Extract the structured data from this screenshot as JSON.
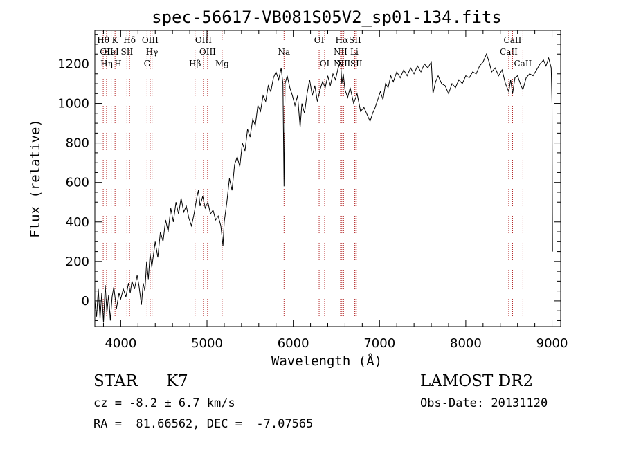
{
  "chart_data": {
    "type": "line",
    "title": "spec-56617-VB081S05V2_sp01-134.fits",
    "xlabel": "Wavelength (Å)",
    "ylabel": "Flux (relative)",
    "xlim": [
      3700,
      9100
    ],
    "ylim": [
      -130,
      1370
    ],
    "x_ticks": [
      4000,
      5000,
      6000,
      7000,
      8000,
      9000
    ],
    "y_ticks": [
      0,
      200,
      400,
      600,
      800,
      1000,
      1200
    ],
    "grid": false,
    "series": [
      {
        "color": "#000000",
        "points": [
          [
            3700,
            0
          ],
          [
            3720,
            -80
          ],
          [
            3740,
            60
          ],
          [
            3760,
            -90
          ],
          [
            3780,
            40
          ],
          [
            3800,
            -110
          ],
          [
            3820,
            80
          ],
          [
            3840,
            -60
          ],
          [
            3860,
            30
          ],
          [
            3880,
            -100
          ],
          [
            3900,
            20
          ],
          [
            3920,
            70
          ],
          [
            3950,
            -40
          ],
          [
            3980,
            40
          ],
          [
            4000,
            10
          ],
          [
            4030,
            60
          ],
          [
            4060,
            20
          ],
          [
            4090,
            90
          ],
          [
            4110,
            40
          ],
          [
            4130,
            100
          ],
          [
            4160,
            60
          ],
          [
            4190,
            130
          ],
          [
            4210,
            80
          ],
          [
            4240,
            -20
          ],
          [
            4260,
            90
          ],
          [
            4280,
            50
          ],
          [
            4300,
            200
          ],
          [
            4320,
            110
          ],
          [
            4340,
            240
          ],
          [
            4360,
            170
          ],
          [
            4400,
            300
          ],
          [
            4430,
            220
          ],
          [
            4460,
            350
          ],
          [
            4490,
            300
          ],
          [
            4520,
            410
          ],
          [
            4550,
            350
          ],
          [
            4580,
            470
          ],
          [
            4610,
            400
          ],
          [
            4640,
            500
          ],
          [
            4670,
            440
          ],
          [
            4700,
            520
          ],
          [
            4730,
            450
          ],
          [
            4760,
            480
          ],
          [
            4790,
            420
          ],
          [
            4820,
            380
          ],
          [
            4850,
            440
          ],
          [
            4880,
            520
          ],
          [
            4900,
            560
          ],
          [
            4920,
            480
          ],
          [
            4950,
            530
          ],
          [
            4980,
            470
          ],
          [
            5010,
            500
          ],
          [
            5040,
            440
          ],
          [
            5070,
            460
          ],
          [
            5100,
            410
          ],
          [
            5130,
            430
          ],
          [
            5160,
            380
          ],
          [
            5185,
            280
          ],
          [
            5200,
            400
          ],
          [
            5230,
            500
          ],
          [
            5260,
            620
          ],
          [
            5290,
            560
          ],
          [
            5320,
            690
          ],
          [
            5350,
            730
          ],
          [
            5380,
            680
          ],
          [
            5410,
            800
          ],
          [
            5440,
            760
          ],
          [
            5470,
            870
          ],
          [
            5500,
            830
          ],
          [
            5530,
            920
          ],
          [
            5560,
            890
          ],
          [
            5590,
            990
          ],
          [
            5620,
            960
          ],
          [
            5650,
            1040
          ],
          [
            5680,
            1010
          ],
          [
            5710,
            1090
          ],
          [
            5740,
            1060
          ],
          [
            5770,
            1130
          ],
          [
            5800,
            1160
          ],
          [
            5830,
            1120
          ],
          [
            5860,
            1180
          ],
          [
            5880,
            1100
          ],
          [
            5893,
            580
          ],
          [
            5905,
            1100
          ],
          [
            5930,
            1140
          ],
          [
            5960,
            1080
          ],
          [
            5990,
            1040
          ],
          [
            6020,
            990
          ],
          [
            6050,
            1040
          ],
          [
            6080,
            880
          ],
          [
            6100,
            1000
          ],
          [
            6130,
            950
          ],
          [
            6160,
            1050
          ],
          [
            6190,
            1120
          ],
          [
            6220,
            1040
          ],
          [
            6250,
            1090
          ],
          [
            6280,
            1010
          ],
          [
            6310,
            1070
          ],
          [
            6340,
            1110
          ],
          [
            6370,
            1080
          ],
          [
            6400,
            1140
          ],
          [
            6430,
            1090
          ],
          [
            6460,
            1150
          ],
          [
            6490,
            1120
          ],
          [
            6520,
            1180
          ],
          [
            6550,
            1210
          ],
          [
            6563,
            1100
          ],
          [
            6580,
            1150
          ],
          [
            6600,
            1070
          ],
          [
            6630,
            1030
          ],
          [
            6660,
            1080
          ],
          [
            6700,
            1000
          ],
          [
            6740,
            1050
          ],
          [
            6780,
            960
          ],
          [
            6820,
            980
          ],
          [
            6860,
            940
          ],
          [
            6890,
            910
          ],
          [
            6920,
            950
          ],
          [
            6950,
            980
          ],
          [
            6980,
            1020
          ],
          [
            7010,
            1060
          ],
          [
            7040,
            1020
          ],
          [
            7070,
            1100
          ],
          [
            7100,
            1080
          ],
          [
            7130,
            1140
          ],
          [
            7160,
            1110
          ],
          [
            7200,
            1160
          ],
          [
            7240,
            1130
          ],
          [
            7280,
            1170
          ],
          [
            7320,
            1140
          ],
          [
            7360,
            1180
          ],
          [
            7400,
            1150
          ],
          [
            7440,
            1190
          ],
          [
            7480,
            1160
          ],
          [
            7520,
            1200
          ],
          [
            7560,
            1180
          ],
          [
            7600,
            1210
          ],
          [
            7620,
            1050
          ],
          [
            7650,
            1110
          ],
          [
            7680,
            1140
          ],
          [
            7720,
            1100
          ],
          [
            7760,
            1090
          ],
          [
            7800,
            1050
          ],
          [
            7840,
            1100
          ],
          [
            7880,
            1080
          ],
          [
            7920,
            1120
          ],
          [
            7960,
            1100
          ],
          [
            8000,
            1140
          ],
          [
            8040,
            1130
          ],
          [
            8080,
            1160
          ],
          [
            8120,
            1150
          ],
          [
            8160,
            1190
          ],
          [
            8200,
            1210
          ],
          [
            8240,
            1250
          ],
          [
            8270,
            1210
          ],
          [
            8300,
            1160
          ],
          [
            8340,
            1180
          ],
          [
            8380,
            1140
          ],
          [
            8420,
            1170
          ],
          [
            8460,
            1100
          ],
          [
            8498,
            1060
          ],
          [
            8520,
            1120
          ],
          [
            8542,
            1050
          ],
          [
            8570,
            1130
          ],
          [
            8600,
            1140
          ],
          [
            8640,
            1090
          ],
          [
            8662,
            1070
          ],
          [
            8700,
            1130
          ],
          [
            8740,
            1150
          ],
          [
            8780,
            1140
          ],
          [
            8820,
            1170
          ],
          [
            8860,
            1200
          ],
          [
            8900,
            1220
          ],
          [
            8930,
            1190
          ],
          [
            8960,
            1230
          ],
          [
            8990,
            1180
          ],
          [
            9000,
            1000
          ],
          [
            9005,
            250
          ]
        ]
      }
    ],
    "lines": [
      {
        "labels": [
          "Hθ"
        ],
        "row": 1,
        "wavelength": 3797
      },
      {
        "labels": [
          "OII",
          "Hη"
        ],
        "row": 2,
        "wavelength": 3836
      },
      {
        "labels": [
          "HeI"
        ],
        "row": 2,
        "wavelength": 3889
      },
      {
        "labels": [
          "K"
        ],
        "row": 1,
        "wavelength": 3934
      },
      {
        "labels": [
          "H"
        ],
        "row": 3,
        "wavelength": 3969
      },
      {
        "labels": [
          "SII"
        ],
        "row": 2,
        "wavelength": 4072
      },
      {
        "labels": [
          "Hδ"
        ],
        "row": 1,
        "wavelength": 4102
      },
      {
        "labels": [
          "G"
        ],
        "row": 3,
        "wavelength": 4305
      },
      {
        "labels": [
          "OIII"
        ],
        "row": 1,
        "wavelength": 4341
      },
      {
        "labels": [
          "Hγ"
        ],
        "row": 2,
        "wavelength": 4363
      },
      {
        "labels": [
          "Hβ"
        ],
        "row": 3,
        "wavelength": 4861
      },
      {
        "labels": [
          "OIII"
        ],
        "row": 1,
        "wavelength": 4959
      },
      {
        "labels": [
          "OIII"
        ],
        "row": 2,
        "wavelength": 5007
      },
      {
        "labels": [
          "Mg"
        ],
        "row": 3,
        "wavelength": 5175
      },
      {
        "labels": [
          "Na"
        ],
        "row": 2,
        "wavelength": 5893
      },
      {
        "labels": [
          "OI"
        ],
        "row": 1,
        "wavelength": 6300
      },
      {
        "labels": [
          "OI"
        ],
        "row": 3,
        "wavelength": 6364
      },
      {
        "labels": [
          "NII",
          "NII"
        ],
        "row": 2,
        "wavelength": 6548
      },
      {
        "labels": [
          "Hα"
        ],
        "row": 1,
        "wavelength": 6563
      },
      {
        "labels": [
          "NII"
        ],
        "row": 3,
        "wavelength": 6583
      },
      {
        "labels": [
          "SII"
        ],
        "row": 1,
        "wavelength": 6716
      },
      {
        "labels": [
          "SII"
        ],
        "row": 3,
        "wavelength": 6731
      },
      {
        "labels": [
          "Li"
        ],
        "row": 2,
        "wavelength": 6708
      },
      {
        "labels": [
          "CaII"
        ],
        "row": 2,
        "wavelength": 8498
      },
      {
        "labels": [
          "CaII"
        ],
        "row": 1,
        "wavelength": 8542
      },
      {
        "labels": [
          "CaII"
        ],
        "row": 3,
        "wavelength": 8662
      }
    ],
    "line_color": "#b22222"
  },
  "info": {
    "class": "STAR",
    "subclass": "K7",
    "survey": "LAMOST DR2",
    "cz": "cz = -8.2 ± 6.7 km/s",
    "obs_date": "Obs-Date: 20131120",
    "radec": "RA =  81.66562, DEC =  -7.07565"
  }
}
